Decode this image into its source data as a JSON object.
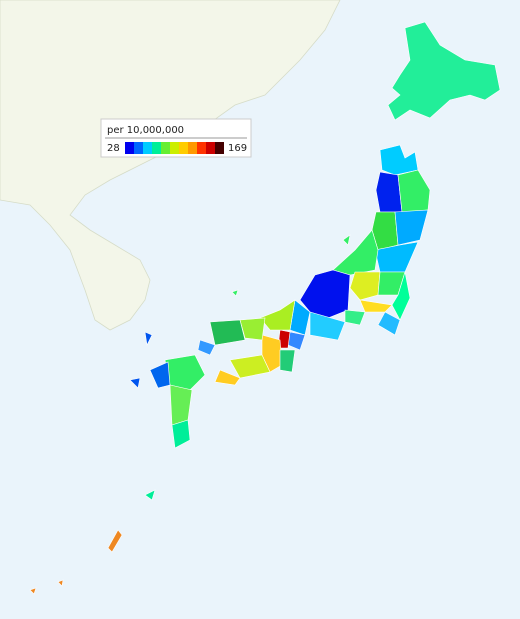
{
  "legend": {
    "title": "per 10,000,000",
    "min": 28,
    "max": 169
  }
}
